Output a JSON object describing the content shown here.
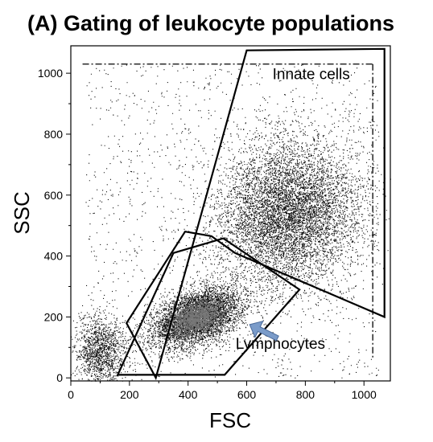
{
  "chart_data": {
    "type": "scatter",
    "title": "(A) Gating of leukocyte populations",
    "xlabel": "FSC",
    "ylabel": "SSC",
    "xlim": [
      0,
      1090
    ],
    "ylim": [
      -10,
      1090
    ],
    "x_ticks": [
      0,
      200,
      400,
      600,
      800,
      1000
    ],
    "y_ticks": [
      0,
      200,
      400,
      600,
      800,
      1000
    ],
    "x_tick_labels": [
      "0",
      "200",
      "400",
      "600",
      "800",
      "1000"
    ],
    "y_tick_labels": [
      "0",
      "200",
      "400",
      "600",
      "800",
      "1000"
    ],
    "grid": false,
    "legend": "none",
    "point_color": "#111111",
    "dense_core_color": "#777777",
    "arrow_color": "#7a9bc9",
    "clusters": [
      {
        "name": "lymphocyte-cluster",
        "center": [
          430,
          200
        ],
        "spread": [
          80,
          42
        ],
        "rotation_deg": 20,
        "count": 5000
      },
      {
        "name": "innate-cluster",
        "center": [
          745,
          545
        ],
        "spread": [
          125,
          115
        ],
        "rotation_deg": 45,
        "count": 7000
      },
      {
        "name": "debris-cluster",
        "center": [
          100,
          85
        ],
        "spread": [
          45,
          60
        ],
        "rotation_deg": 0,
        "count": 1400
      },
      {
        "name": "background-scatter",
        "range_x": [
          50,
          1050
        ],
        "range_y": [
          0,
          1030
        ],
        "count": 1400
      }
    ],
    "gates": [
      {
        "name": "innate-cells-gate",
        "label": "Innate cells",
        "label_at": [
          820,
          980
        ],
        "polygon": [
          [
            290,
            0
          ],
          [
            600,
            1075
          ],
          [
            1070,
            1080
          ],
          [
            1070,
            200
          ],
          [
            560,
            410
          ],
          [
            480,
            465
          ],
          [
            390,
            480
          ],
          [
            190,
            180
          ]
        ]
      },
      {
        "name": "lymphocytes-gate",
        "label": "Lymphocytes",
        "label_at": [
          715,
          95
        ],
        "polygon": [
          [
            160,
            10
          ],
          [
            525,
            10
          ],
          [
            780,
            290
          ],
          [
            520,
            458
          ],
          [
            350,
            410
          ]
        ]
      }
    ],
    "reference_line": {
      "name": "upper-limit-line",
      "y": 1030,
      "x_range": [
        40,
        1030
      ],
      "style": "dash-dot"
    },
    "arrow": {
      "name": "lymphocytes-arrow",
      "from": [
        705,
        130
      ],
      "to": [
        610,
        175
      ]
    }
  }
}
